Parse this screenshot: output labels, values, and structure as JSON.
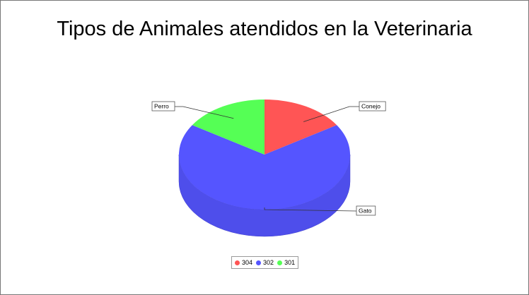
{
  "chart_data": {
    "type": "pie",
    "title": "Tipos de Animales atendidos en la Veterinaria",
    "slices": [
      {
        "label": "Conejo",
        "value": 16,
        "color": "#ff5555"
      },
      {
        "label": "Gato",
        "value": 68,
        "color": "#5555ff"
      },
      {
        "label": "Perro",
        "value": 16,
        "color": "#55ff55"
      }
    ],
    "legend": [
      {
        "label": "304",
        "color": "#ff5555"
      },
      {
        "label": "302",
        "color": "#5555ff"
      },
      {
        "label": "301",
        "color": "#55ff55"
      }
    ],
    "legend_position": "bottom",
    "style": "3d"
  }
}
